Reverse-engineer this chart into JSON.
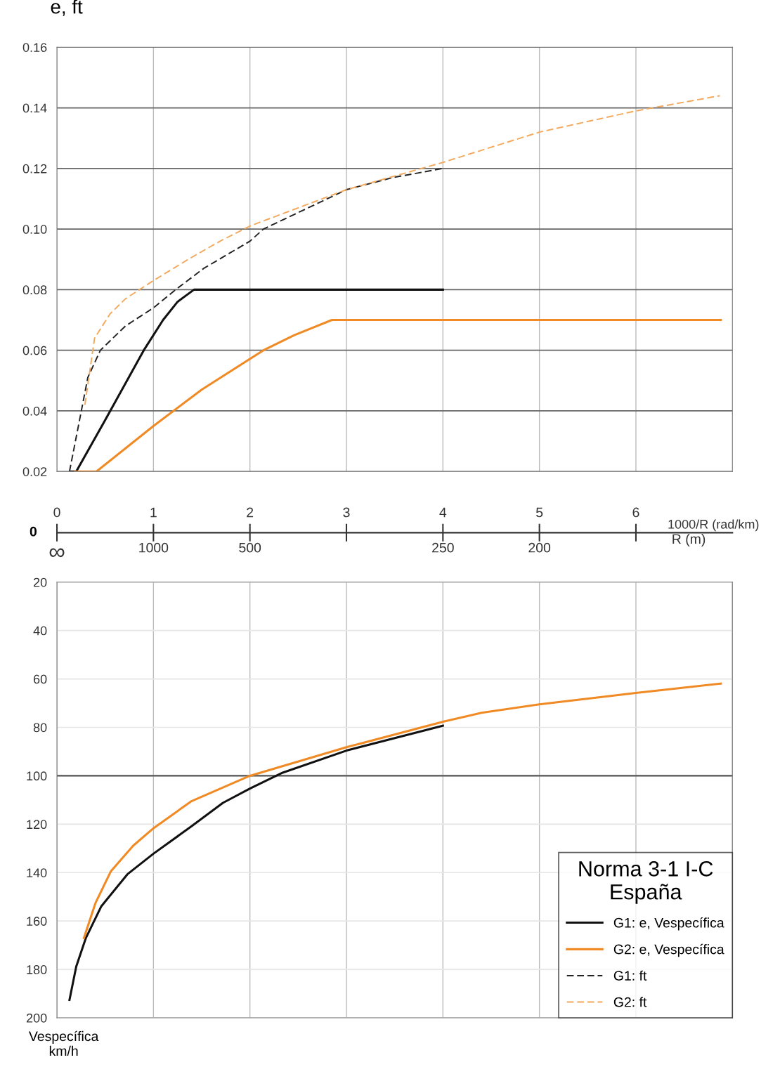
{
  "chart_data": [
    {
      "type": "line",
      "ylabel": "e, ft",
      "xlabel": "1000/R (rad/km)",
      "xlim": [
        0,
        7
      ],
      "xticks": [
        0,
        1,
        2,
        3,
        4,
        5,
        6
      ],
      "ylim": [
        0.02,
        0.16
      ],
      "yticks": [
        {
          "value": 0.02,
          "label": "0.02"
        },
        {
          "value": 0.04,
          "label": "0.04"
        },
        {
          "value": 0.06,
          "label": "0.06"
        },
        {
          "value": 0.08,
          "label": "0.08"
        },
        {
          "value": 0.1,
          "label": "0.10"
        },
        {
          "value": 0.12,
          "label": "0.12"
        },
        {
          "value": 0.14,
          "label": "0.14"
        },
        {
          "value": 0.16,
          "label": "0.16"
        }
      ],
      "grid": true,
      "legend": "bottom right",
      "legend_title": "Norma 3-1 I-C\nEspaña",
      "series": [
        {
          "name": "G1: e, Vespecífica",
          "color": "#111111",
          "line_style": "solid",
          "x": [
            0.15,
            0.2,
            0.5,
            0.9,
            1.1,
            1.25,
            1.42,
            4
          ],
          "values": [
            0.02,
            0.02,
            0.037,
            0.06,
            0.07,
            0.076,
            0.08,
            0.08
          ]
        },
        {
          "name": "G2: e, Vespecífica",
          "color": "#f08a24",
          "line_style": "solid",
          "x": [
            0.19,
            0.41,
            1.0,
            1.5,
            2.14,
            2.46,
            2.85,
            6.88
          ],
          "values": [
            0.02,
            0.02,
            0.035,
            0.047,
            0.06,
            0.065,
            0.07,
            0.07
          ]
        },
        {
          "name": "G1: ft",
          "color": "#222222",
          "line_style": "dashed",
          "x": [
            0.13,
            0.21,
            0.32,
            0.45,
            0.71,
            1.0,
            1.23,
            1.52,
            2.0,
            2.14,
            3.0,
            3.48,
            4.0
          ],
          "values": [
            0.02,
            0.033,
            0.051,
            0.06,
            0.068,
            0.074,
            0.08,
            0.087,
            0.096,
            0.1,
            0.113,
            0.117,
            0.12
          ]
        },
        {
          "name": "G2: ft",
          "color": "#f2a95e",
          "line_style": "dashed",
          "x": [
            0.29,
            0.39,
            0.55,
            0.71,
            1.0,
            1.36,
            1.69,
            2.0,
            3.0,
            4.0,
            5.0,
            6.0,
            6.87
          ],
          "values": [
            0.042,
            0.064,
            0.072,
            0.077,
            0.083,
            0.09,
            0.096,
            0.101,
            0.113,
            0.122,
            0.132,
            0.139,
            0.144
          ]
        }
      ]
    },
    {
      "type": "other",
      "categories": [
        "∞",
        "1000",
        "500",
        null,
        "250",
        "200",
        null
      ],
      "xlabel": "R (m)",
      "annotations": [
        "0"
      ]
    },
    {
      "type": "line",
      "ylabel": "Vespecífica\nkm/h",
      "xlim": [
        0,
        7
      ],
      "tick_labels": "y",
      "ylim": [
        200,
        20
      ],
      "yticks": [
        20,
        40,
        60,
        80,
        100,
        120,
        140,
        160,
        180,
        200
      ],
      "grid": true,
      "ref_lines": [
        {
          "axis": "y",
          "value": 100,
          "color": "#555555"
        }
      ],
      "series": [
        {
          "color": "#111111",
          "line_style": "solid",
          "x": [
            0.13,
            0.2,
            0.3,
            0.46,
            0.73,
            1.0,
            1.39,
            1.72,
            2.0,
            2.34,
            3.0,
            4.0
          ],
          "values": [
            192.6,
            178.8,
            167,
            153.9,
            140.7,
            132.2,
            121,
            111.2,
            105.3,
            98.7,
            89.6,
            79.3
          ]
        },
        {
          "color": "#f08a24",
          "line_style": "solid",
          "x": [
            0.28,
            0.4,
            0.56,
            0.79,
            1.0,
            1.39,
            2.0,
            3.0,
            4.0,
            4.4,
            5.0,
            6.0,
            6.88
          ],
          "values": [
            167,
            152.5,
            139.4,
            128.9,
            121.7,
            110.6,
            100,
            88.2,
            77.7,
            74,
            70.5,
            65.8,
            61.9
          ]
        }
      ]
    }
  ]
}
